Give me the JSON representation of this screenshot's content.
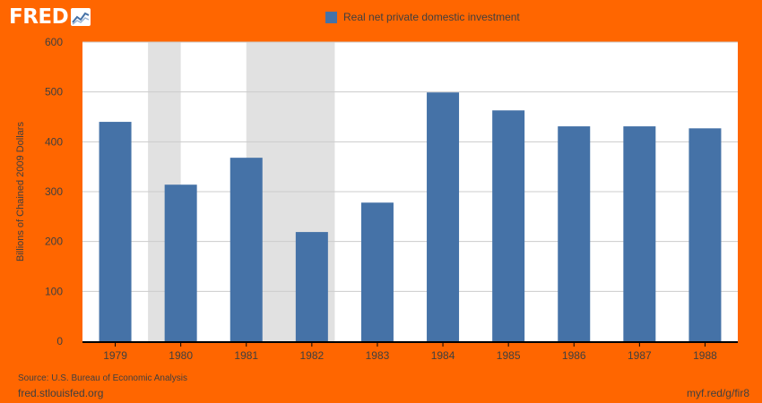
{
  "header": {
    "logo_text": "FRED",
    "logo_icon": "line-chart-icon"
  },
  "colors": {
    "frame": "#ff6600",
    "bar": "#4572a7",
    "recession": "#e1e1e1",
    "grid": "#cccccc",
    "text": "#3f3f3f"
  },
  "chart_data": {
    "type": "bar",
    "title": "",
    "xlabel": "",
    "ylabel": "Billions of Chained 2009 Dollars",
    "categories": [
      "1979",
      "1980",
      "1981",
      "1982",
      "1983",
      "1984",
      "1985",
      "1986",
      "1987",
      "1988"
    ],
    "series": [
      {
        "name": "Real net private domestic investment",
        "values": [
          440,
          314,
          368,
          219,
          278,
          499,
          463,
          431,
          431,
          427
        ]
      }
    ],
    "ylim": [
      0,
      600
    ],
    "yticks": [
      0,
      100,
      200,
      300,
      400,
      500,
      600
    ],
    "grid": true,
    "legend": "top-center",
    "recessions": [
      {
        "start": 1980.0,
        "end": 1980.5
      },
      {
        "start": 1981.5,
        "end": 1982.85
      }
    ]
  },
  "footer": {
    "source": "Source: U.S. Bureau of Economic Analysis",
    "site": "fred.stlouisfed.org",
    "short_link": "myf.red/g/fir8"
  }
}
